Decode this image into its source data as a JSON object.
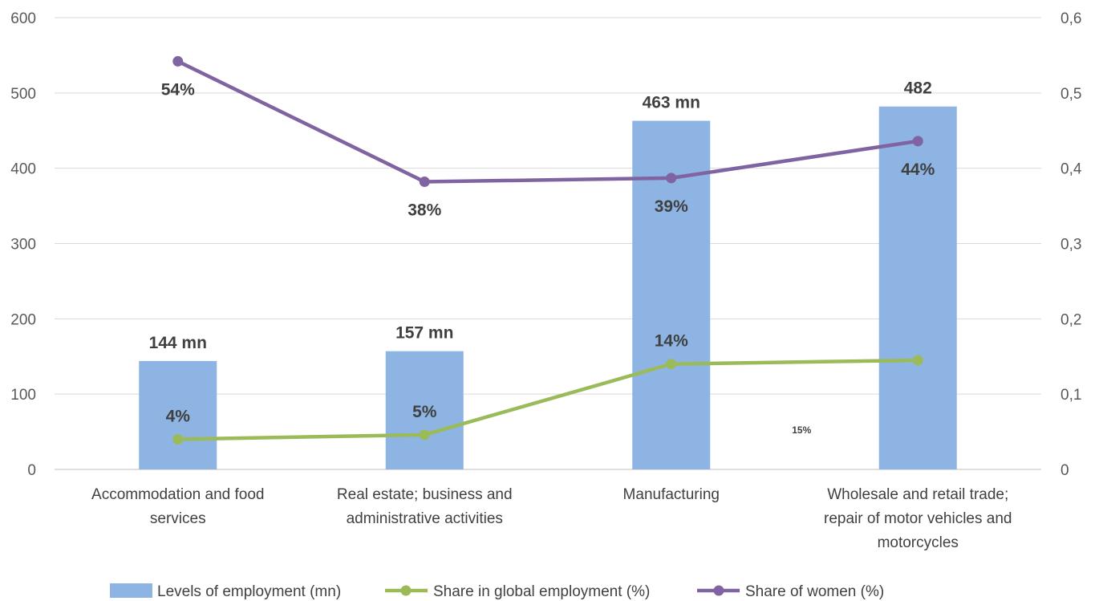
{
  "chart_data": {
    "type": "bar",
    "categories": [
      [
        "Accommodation and food",
        "services"
      ],
      [
        "Real estate; business and",
        "administrative activities"
      ],
      [
        "Manufacturing"
      ],
      [
        "Wholesale and retail trade;",
        "repair of motor vehicles and",
        "motorcycles"
      ]
    ],
    "series": [
      {
        "name": "Levels of employment (mn)",
        "type": "bar",
        "axis": "left",
        "color": "#8eb4e3",
        "values": [
          144,
          157,
          463,
          482
        ],
        "labels": [
          "144 mn",
          "157 mn",
          "463 mn",
          "482"
        ]
      },
      {
        "name": "Share in global employment (%)",
        "type": "line",
        "axis": "right",
        "color": "#9bbb59",
        "values": [
          0.04,
          0.046,
          0.14,
          0.145
        ],
        "labels": [
          "4%",
          "5%",
          "14%",
          "15%"
        ]
      },
      {
        "name": "Share of women (%)",
        "type": "line",
        "axis": "right",
        "color": "#8064a2",
        "values": [
          0.542,
          0.382,
          0.387,
          0.436
        ],
        "labels": [
          "54%",
          "38%",
          "39%",
          "44%"
        ]
      }
    ],
    "y_left": {
      "min": 0,
      "max": 600,
      "ticks": [
        "0",
        "100",
        "200",
        "300",
        "400",
        "500",
        "600"
      ]
    },
    "y_right": {
      "min": 0,
      "max": 0.6,
      "ticks": [
        "0",
        "0,1",
        "0,2",
        "0,3",
        "0,4",
        "0,5",
        "0,6"
      ]
    },
    "grid": true,
    "legend_position": "bottom"
  }
}
